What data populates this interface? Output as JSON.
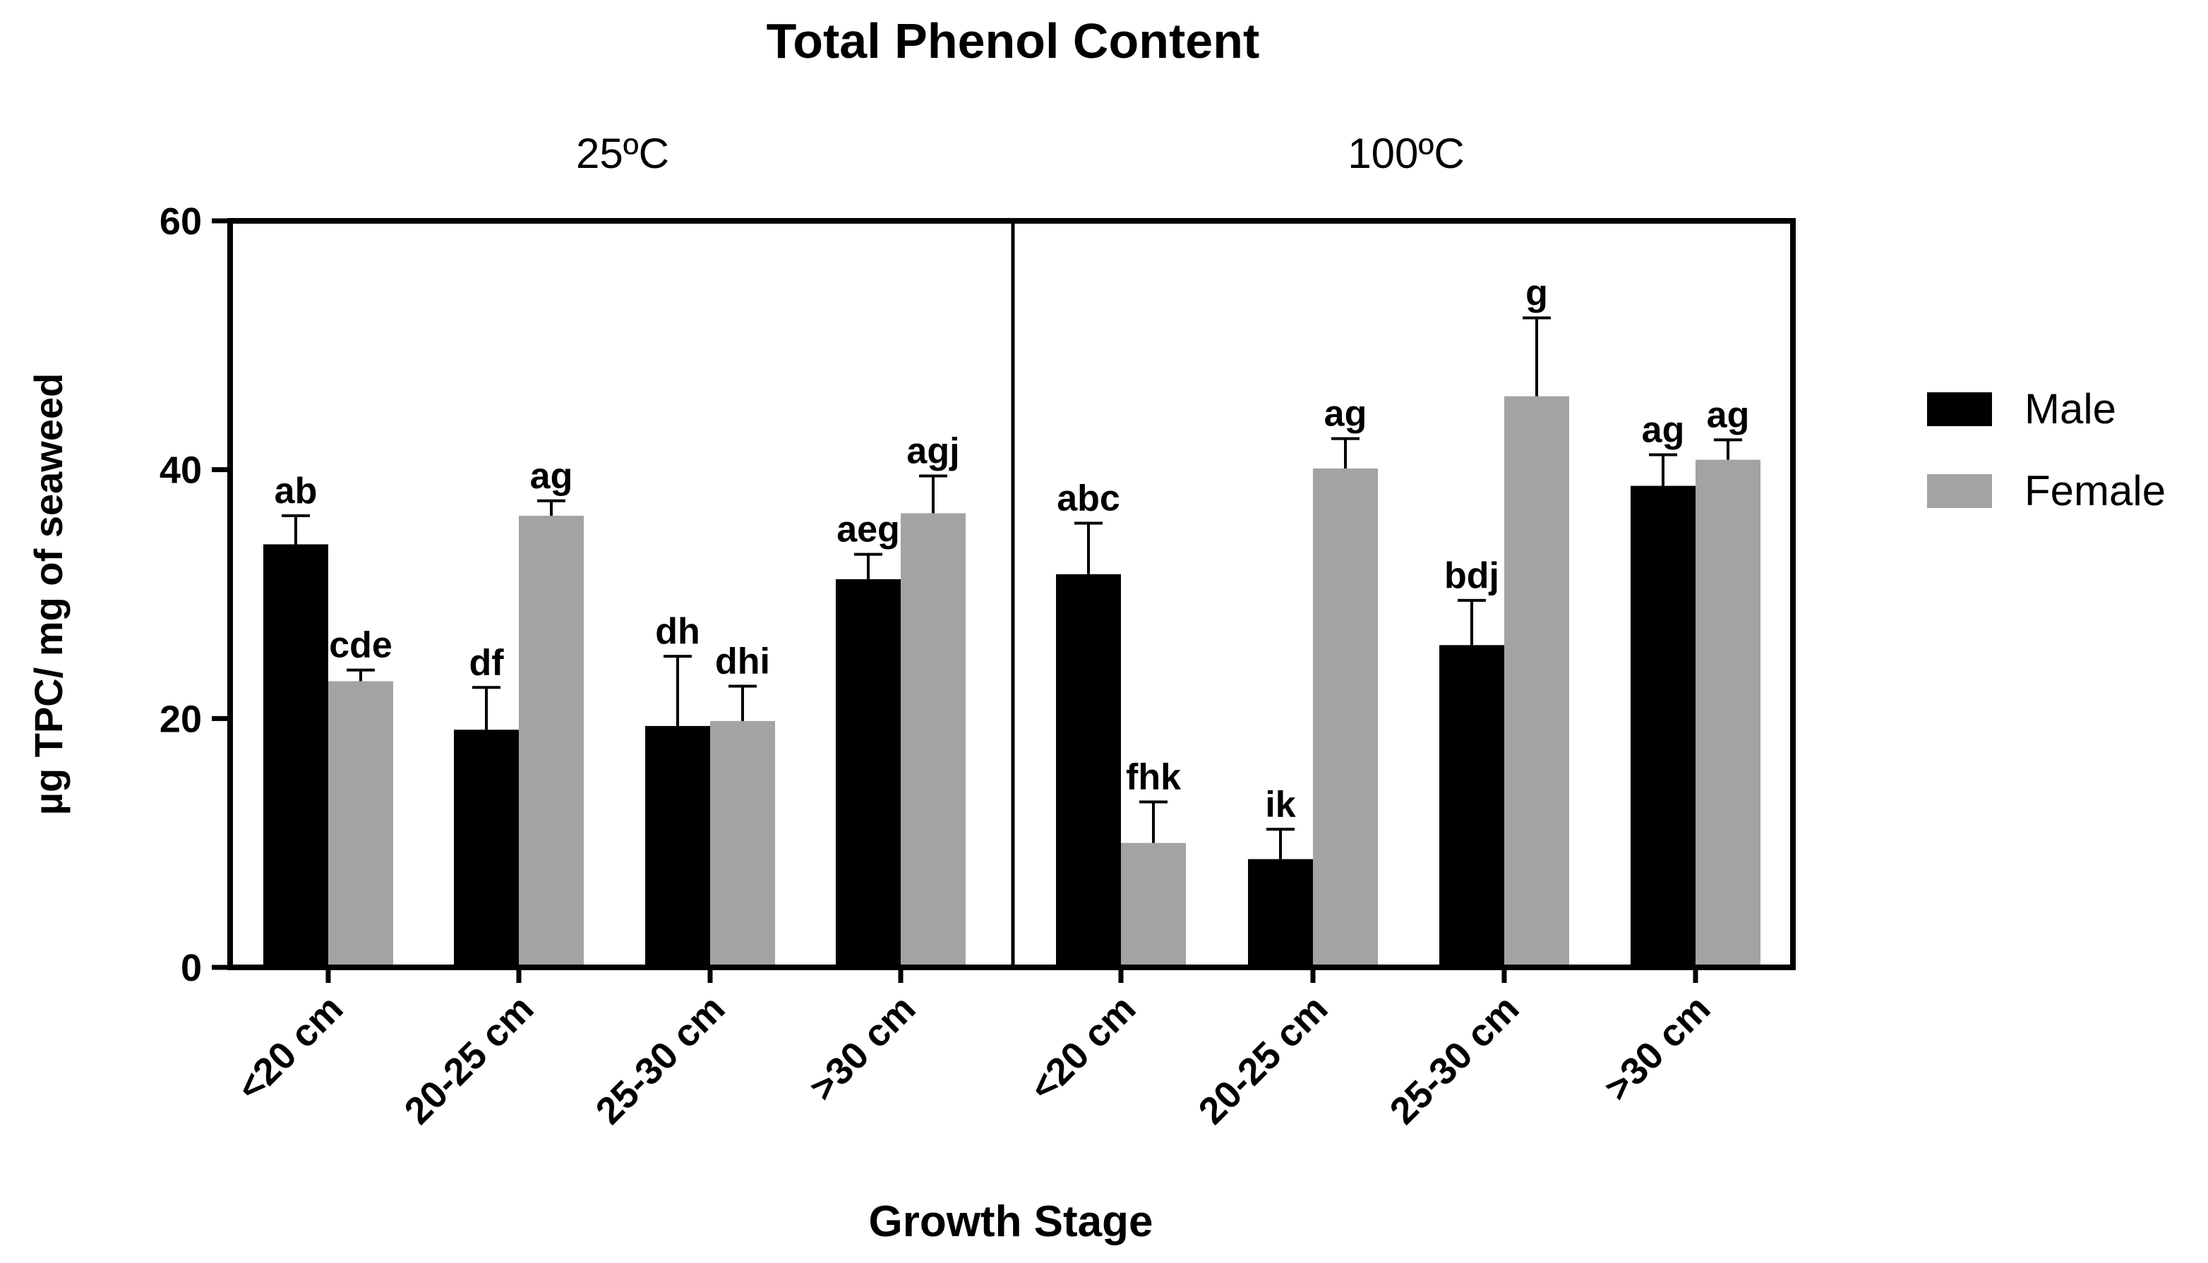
{
  "chart_data": {
    "type": "bar",
    "title": "Total Phenol Content",
    "xlabel": "Growth Stage",
    "ylabel": "µg TPC/ mg of seaweed",
    "ylim": [
      0,
      60
    ],
    "yticks": [
      0,
      20,
      40,
      60
    ],
    "grid": false,
    "legend_position": "right",
    "colors": {
      "Male": "#000000",
      "Female": "#a3a3a6"
    },
    "panels": [
      {
        "label": "25ºC",
        "categories": [
          "<20 cm",
          "20-25 cm",
          "25-30 cm",
          ">30 cm"
        ],
        "series": [
          {
            "name": "Male",
            "values": [
              34.0,
              19.1,
              19.4,
              31.2
            ],
            "errors": [
              2.3,
              3.4,
              5.6,
              2.0
            ],
            "letters": [
              "ab",
              "df",
              "dh",
              "aeg"
            ]
          },
          {
            "name": "Female",
            "values": [
              23.0,
              36.3,
              19.8,
              36.5
            ],
            "errors": [
              0.9,
              1.2,
              2.8,
              3.0
            ],
            "letters": [
              "cde",
              "ag",
              "dhi",
              "agj"
            ]
          }
        ]
      },
      {
        "label": "100ºC",
        "categories": [
          "<20 cm",
          "20-25 cm",
          "25-30 cm",
          ">30 cm"
        ],
        "series": [
          {
            "name": "Male",
            "values": [
              31.6,
              8.7,
              25.9,
              38.7
            ],
            "errors": [
              4.1,
              2.4,
              3.6,
              2.5
            ],
            "letters": [
              "abc",
              "ik",
              "bdj",
              "ag"
            ]
          },
          {
            "name": "Female",
            "values": [
              10.0,
              40.1,
              45.9,
              40.8
            ],
            "errors": [
              3.3,
              2.4,
              6.3,
              1.6
            ],
            "letters": [
              "fhk",
              "ag",
              "g",
              "ag"
            ]
          }
        ]
      }
    ]
  }
}
